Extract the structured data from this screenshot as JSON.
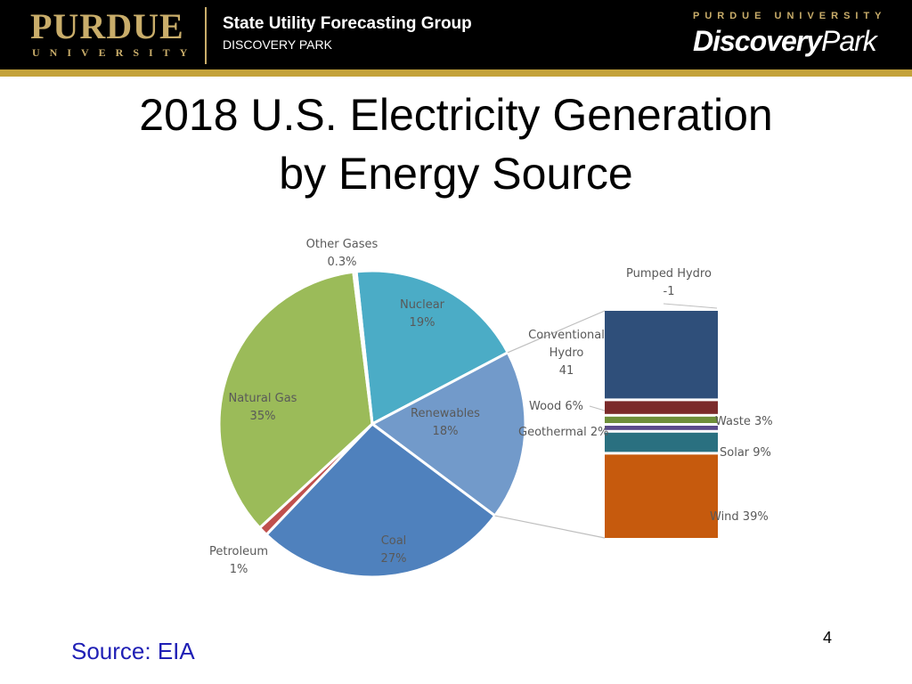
{
  "header": {
    "purdue_wordmark": "PURDUE",
    "purdue_university": "UNIVERSITY",
    "group_name": "State Utility Forecasting Group",
    "group_sub": "DISCOVERY PARK",
    "dp_top": "PURDUE UNIVERSITY",
    "dp_main": "Discovery",
    "dp_park": "Park"
  },
  "slide": {
    "title_line1": "2018 U.S. Electricity Generation",
    "title_line2": "by Energy Source",
    "source": "Source: EIA",
    "page_number": "4"
  },
  "colors": {
    "header_bg": "#000000",
    "gold": "#c4a23a",
    "source_text": "#1f1fb5"
  },
  "chart_data": [
    {
      "type": "pie",
      "title": "",
      "slices": [
        {
          "name": "Nuclear",
          "label": "19%",
          "value": 19,
          "color": "#4bacc6"
        },
        {
          "name": "Renewables",
          "label": "18%",
          "value": 18,
          "color": "#729aca"
        },
        {
          "name": "Coal",
          "label": "27%",
          "value": 27,
          "color": "#4f81bd"
        },
        {
          "name": "Petroleum",
          "label": "1%",
          "value": 1,
          "color": "#c0504d"
        },
        {
          "name": "Natural Gas",
          "label": "35%",
          "value": 35,
          "color": "#9bbb59"
        },
        {
          "name": "Other Gases",
          "label": "0.3%",
          "value": 0.3,
          "color": "#d9d9d9"
        }
      ]
    },
    {
      "type": "bar",
      "stacked": true,
      "title": "",
      "segments": [
        {
          "name": "Pumped Hydro",
          "label": "-1",
          "value": -1,
          "color": "#7f7f7f"
        },
        {
          "name": "Conventional Hydro",
          "label": "41",
          "value": 41,
          "color": "#2f4f7a"
        },
        {
          "name": "Wood",
          "label": "6%",
          "value": 6,
          "color": "#7b2a2a"
        },
        {
          "name": "Waste",
          "label": "3%",
          "value": 3,
          "color": "#6e8f3a"
        },
        {
          "name": "Geothermal",
          "label": "2%",
          "value": 2,
          "color": "#5a4a8a"
        },
        {
          "name": "Solar",
          "label": "9%",
          "value": 9,
          "color": "#2a7080"
        },
        {
          "name": "Wind",
          "label": "39%",
          "value": 39,
          "color": "#c65a0d"
        }
      ]
    }
  ]
}
